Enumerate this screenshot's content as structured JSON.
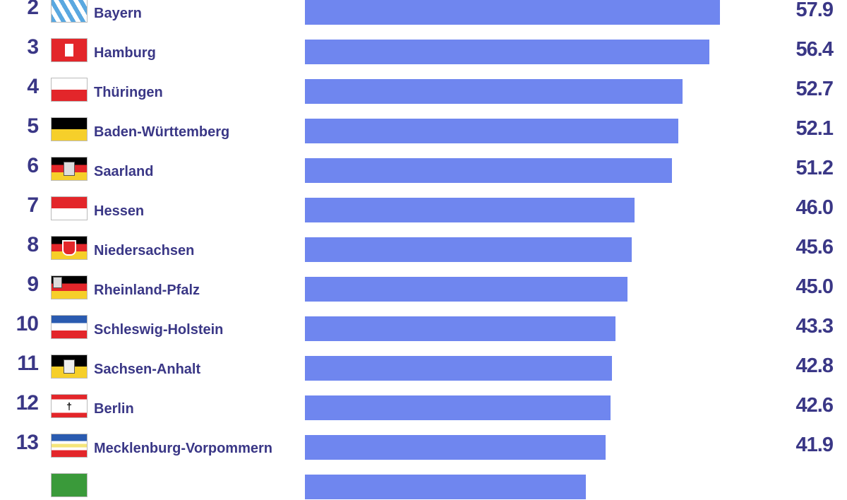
{
  "chart_data": {
    "type": "bar",
    "orientation": "horizontal",
    "bar_color": "#6f86ef",
    "text_color": "#3a3786",
    "xlim": [
      0,
      57.9
    ],
    "rows": [
      {
        "rank": "2",
        "label": "Bayern",
        "value": 57.9,
        "value_label": "57.9",
        "flag": "bayern"
      },
      {
        "rank": "3",
        "label": "Hamburg",
        "value": 56.4,
        "value_label": "56.4",
        "flag": "hamburg"
      },
      {
        "rank": "4",
        "label": "Thüringen",
        "value": 52.7,
        "value_label": "52.7",
        "flag": "thueringen"
      },
      {
        "rank": "5",
        "label": "Baden-Württemberg",
        "value": 52.1,
        "value_label": "52.1",
        "flag": "bw"
      },
      {
        "rank": "6",
        "label": "Saarland",
        "value": 51.2,
        "value_label": "51.2",
        "flag": "saarland"
      },
      {
        "rank": "7",
        "label": "Hessen",
        "value": 46.0,
        "value_label": "46.0",
        "flag": "hessen"
      },
      {
        "rank": "8",
        "label": "Niedersachsen",
        "value": 45.6,
        "value_label": "45.6",
        "flag": "niedersachsen"
      },
      {
        "rank": "9",
        "label": "Rheinland-Pfalz",
        "value": 45.0,
        "value_label": "45.0",
        "flag": "rlp"
      },
      {
        "rank": "10",
        "label": "Schleswig-Holstein",
        "value": 43.3,
        "value_label": "43.3",
        "flag": "sh"
      },
      {
        "rank": "11",
        "label": "Sachsen-Anhalt",
        "value": 42.8,
        "value_label": "42.8",
        "flag": "sachsen-anhalt"
      },
      {
        "rank": "12",
        "label": "Berlin",
        "value": 42.6,
        "value_label": "42.6",
        "flag": "berlin"
      },
      {
        "rank": "13",
        "label": "Mecklenburg-Vorpommern",
        "value": 41.9,
        "value_label": "41.9",
        "flag": "mv"
      }
    ],
    "partial_row": {
      "value": 39.2,
      "flag": "green"
    }
  }
}
